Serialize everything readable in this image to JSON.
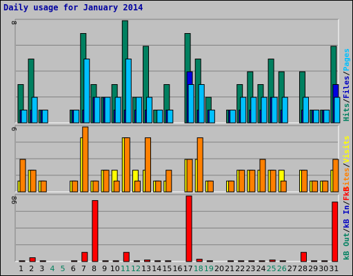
{
  "title": "Daily usage for January 2014",
  "panel_labels": {
    "top_max": "8",
    "middle_max": "6",
    "bottom_max": "86"
  },
  "legend": {
    "top": [
      {
        "text": "Pages",
        "color": "#00c0ff"
      },
      {
        "text": "/",
        "color": "#000000"
      },
      {
        "text": "Files",
        "color": "#0000c0"
      },
      {
        "text": "/",
        "color": "#000000"
      },
      {
        "text": "Hits",
        "color": "#008060"
      }
    ],
    "middle": [
      {
        "text": "Visits",
        "color": "#ffff00"
      },
      {
        "text": "/",
        "color": "#000000"
      },
      {
        "text": "Sites",
        "color": "#ff8000"
      }
    ],
    "bottom": [
      {
        "text": "kB",
        "color": "#ff0000"
      },
      {
        "text": "F",
        "color": "#ff0000"
      },
      {
        "text": "/",
        "color": "#000000"
      },
      {
        "text": "kB In",
        "color": "#0000c0"
      },
      {
        "text": "/",
        "color": "#000000"
      },
      {
        "text": "kB Out",
        "color": "#008060"
      }
    ]
  },
  "colors": {
    "hits": "#008060",
    "files": "#0000e0",
    "pages": "#00c0ff",
    "visits": "#ffff00",
    "sites": "#ff8000",
    "kbytes": "#ff0000",
    "weekday_label": "#000000",
    "weekend_label": "#00805c"
  },
  "chart_data": {
    "type": "bar",
    "title": "Daily usage for January 2014",
    "days": [
      "1",
      "2",
      "3",
      "4",
      "5",
      "6",
      "7",
      "8",
      "9",
      "10",
      "11",
      "12",
      "13",
      "14",
      "15",
      "16",
      "17",
      "18",
      "19",
      "20",
      "21",
      "22",
      "23",
      "24",
      "25",
      "26",
      "27",
      "28",
      "29",
      "30",
      "31"
    ],
    "weekend_days": [
      "4",
      "5",
      "11",
      "12",
      "18",
      "19",
      "25",
      "26"
    ],
    "panels": [
      {
        "name": "requests",
        "ylim": [
          0,
          8
        ],
        "series": [
          {
            "name": "Hits",
            "values": [
              3,
              5,
              1,
              0,
              0,
              1,
              7,
              3,
              2,
              3,
              8,
              2,
              6,
              1,
              3,
              0,
              7,
              5,
              2,
              0,
              1,
              3,
              4,
              3,
              5,
              4,
              0,
              4,
              1,
              1,
              6
            ]
          },
          {
            "name": "Files",
            "values": [
              1,
              1,
              1,
              0,
              0,
              1,
              1,
              2,
              2,
              1,
              1,
              1,
              1,
              0,
              1,
              0,
              4,
              1,
              1,
              0,
              1,
              1,
              1,
              1,
              2,
              1,
              0,
              1,
              1,
              1,
              3
            ]
          },
          {
            "name": "Pages",
            "values": [
              1,
              2,
              1,
              0,
              0,
              1,
              5,
              2,
              2,
              2,
              5,
              2,
              2,
              1,
              1,
              0,
              3,
              3,
              1,
              0,
              1,
              2,
              2,
              2,
              2,
              2,
              0,
              2,
              1,
              1,
              2
            ]
          }
        ]
      },
      {
        "name": "visits",
        "ylim": [
          0,
          6
        ],
        "series": [
          {
            "name": "Visits",
            "values": [
              1,
              2,
              1,
              0,
              0,
              1,
              5,
              1,
              2,
              2,
              5,
              2,
              2,
              1,
              1,
              0,
              3,
              3,
              1,
              0,
              1,
              2,
              2,
              2,
              2,
              2,
              0,
              2,
              1,
              1,
              2
            ]
          },
          {
            "name": "Sites",
            "values": [
              3,
              2,
              1,
              0,
              0,
              1,
              6,
              1,
              2,
              1,
              5,
              1,
              5,
              1,
              2,
              0,
              3,
              5,
              1,
              0,
              1,
              2,
              2,
              3,
              2,
              1,
              0,
              2,
              1,
              1,
              3
            ]
          }
        ]
      },
      {
        "name": "kbytes",
        "ylim": [
          0,
          86
        ],
        "series": [
          {
            "name": "kB F",
            "values": [
              1,
              5,
              1,
              0,
              0,
              1,
              12,
              80,
              1,
              1,
              12,
              1,
              2,
              1,
              1,
              0,
              86,
              3,
              1,
              0,
              1,
              1,
              1,
              1,
              2,
              1,
              0,
              12,
              1,
              1,
              78
            ]
          }
        ]
      }
    ]
  }
}
